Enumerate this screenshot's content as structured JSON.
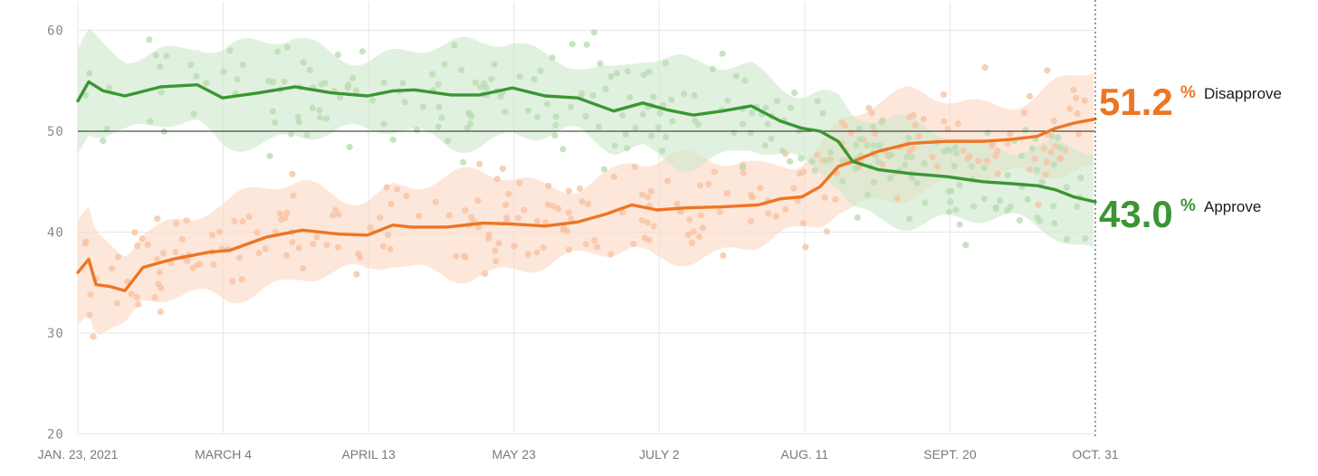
{
  "chart_data": {
    "type": "line",
    "x_ticks": [
      "JAN. 23, 2021",
      "MARCH 4",
      "APRIL 13",
      "MAY 23",
      "JULY 2",
      "AUG. 11",
      "SEPT. 20",
      "OCT. 31"
    ],
    "y_ticks": [
      "20",
      "30",
      "40",
      "50",
      "60"
    ],
    "ylim": [
      20,
      63
    ],
    "xlim": [
      "2021-01-23",
      "2021-10-31"
    ],
    "grid": true,
    "reference_line": 50,
    "colors": {
      "disapprove": "#ee7524",
      "approve": "#3a9634",
      "disapprove_band": "#fbd8c4",
      "approve_band": "#cfe9cb",
      "grid": "#e6e6e6",
      "reference": "#222222"
    },
    "series": [
      {
        "name": "Disapprove",
        "key": "disapprove",
        "x": [
          "2021-01-23",
          "2021-01-26",
          "2021-01-28",
          "2021-02-01",
          "2021-02-05",
          "2021-02-10",
          "2021-02-18",
          "2021-02-28",
          "2021-03-06",
          "2021-03-16",
          "2021-03-26",
          "2021-04-05",
          "2021-04-13",
          "2021-04-20",
          "2021-04-25",
          "2021-05-05",
          "2021-05-15",
          "2021-05-23",
          "2021-06-01",
          "2021-06-10",
          "2021-06-18",
          "2021-06-25",
          "2021-07-02",
          "2021-07-10",
          "2021-07-20",
          "2021-07-30",
          "2021-08-05",
          "2021-08-11",
          "2021-08-16",
          "2021-08-21",
          "2021-08-25",
          "2021-09-01",
          "2021-09-10",
          "2021-09-20",
          "2021-09-30",
          "2021-10-08",
          "2021-10-15",
          "2021-10-20",
          "2021-10-25",
          "2021-10-31"
        ],
        "values": [
          36.0,
          37.3,
          34.8,
          34.6,
          34.2,
          36.5,
          37.3,
          38.0,
          38.2,
          39.5,
          40.2,
          39.8,
          39.7,
          40.7,
          40.5,
          40.5,
          40.9,
          40.8,
          40.6,
          41.0,
          41.8,
          42.7,
          42.2,
          42.4,
          42.5,
          42.7,
          43.3,
          43.5,
          44.5,
          46.5,
          47.0,
          48.0,
          48.8,
          49.0,
          49.0,
          49.2,
          49.5,
          50.3,
          50.8,
          51.2
        ]
      },
      {
        "name": "Approve",
        "key": "approve",
        "x": [
          "2021-01-23",
          "2021-01-26",
          "2021-01-30",
          "2021-02-05",
          "2021-02-15",
          "2021-02-25",
          "2021-03-04",
          "2021-03-14",
          "2021-03-24",
          "2021-04-03",
          "2021-04-13",
          "2021-04-20",
          "2021-04-26",
          "2021-05-06",
          "2021-05-14",
          "2021-05-23",
          "2021-06-01",
          "2021-06-10",
          "2021-06-20",
          "2021-06-28",
          "2021-07-05",
          "2021-07-12",
          "2021-07-20",
          "2021-07-28",
          "2021-08-05",
          "2021-08-11",
          "2021-08-16",
          "2021-08-21",
          "2021-08-25",
          "2021-09-01",
          "2021-09-10",
          "2021-09-20",
          "2021-09-30",
          "2021-10-08",
          "2021-10-15",
          "2021-10-20",
          "2021-10-25",
          "2021-10-31"
        ],
        "values": [
          53.0,
          54.9,
          54.0,
          53.5,
          54.4,
          54.6,
          53.3,
          53.8,
          54.4,
          53.8,
          53.5,
          54.0,
          54.1,
          53.6,
          53.6,
          54.3,
          53.5,
          53.3,
          52.0,
          52.8,
          52.1,
          51.6,
          52.0,
          52.5,
          51.0,
          50.3,
          50.0,
          49.0,
          47.0,
          46.2,
          45.8,
          45.5,
          45.0,
          44.8,
          44.6,
          44.2,
          43.5,
          43.0
        ]
      }
    ],
    "final_values": [
      {
        "key": "disapprove",
        "value": "51.2",
        "pct": "%",
        "label": "Disapprove"
      },
      {
        "key": "approve",
        "value": "43.0",
        "pct": "%",
        "label": "Approve"
      }
    ]
  }
}
